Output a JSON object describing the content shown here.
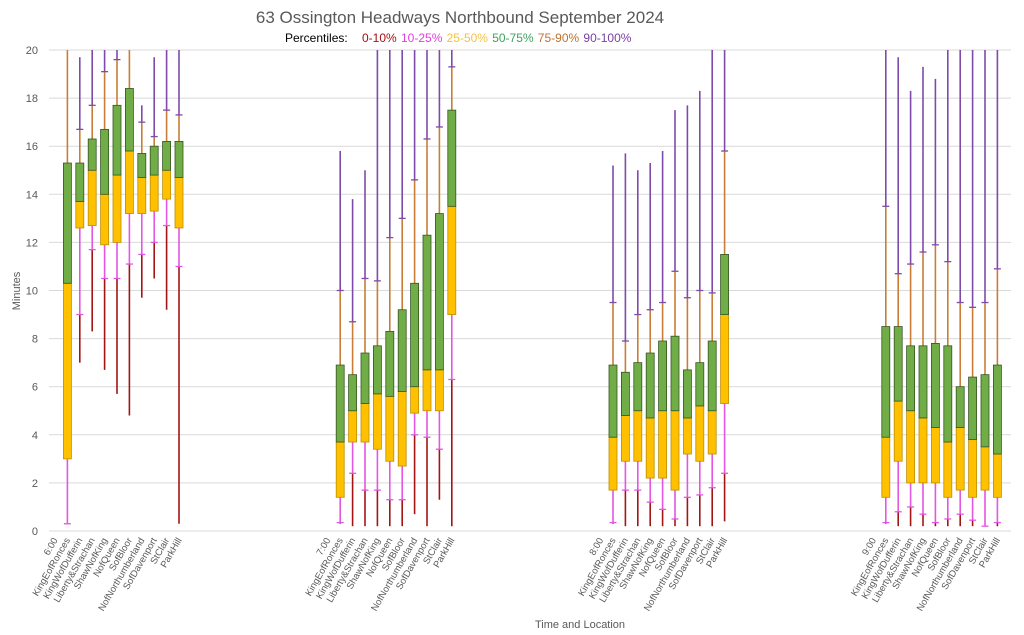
{
  "chart_data": {
    "type": "box-percentile",
    "title": "63 Ossington Headways Northbound September 2024",
    "legend": {
      "label": "Percentiles:",
      "placement": "top-center",
      "entries": [
        {
          "name": "0-10%",
          "color": "#A50F15"
        },
        {
          "name": "10-25%",
          "color": "#E040E0"
        },
        {
          "name": "25-50%",
          "color": "#F5C242"
        },
        {
          "name": "50-75%",
          "color": "#3DA35D"
        },
        {
          "name": "75-90%",
          "color": "#C0722A"
        },
        {
          "name": "90-100%",
          "color": "#7B3FA0"
        }
      ]
    },
    "series_colors": {
      "p0_p10": "#A31515",
      "p10_p25": "#E356E3",
      "p25_p50": "#FFC000",
      "p50_p75": "#70AD47",
      "p75_p90": "#C97D36",
      "p90_p100": "#7E4BAA",
      "box_border_green": "#375623",
      "box_border_yellow": "#BF8F00"
    },
    "xlabel": "Time and Location",
    "ylabel": "Minutes",
    "ylim": [
      0,
      20
    ],
    "yticks": [
      0,
      2,
      4,
      6,
      8,
      10,
      12,
      14,
      16,
      18,
      20
    ],
    "grid": true,
    "categories_per_hour": 22,
    "stops": [
      "KingEofRonces",
      "KingWofDufferin",
      "Liberty&Strachan",
      "ShawNofKing",
      "NofQueen",
      "SofBloor",
      "NofNorthumberland",
      "SofDavenport",
      "StClair",
      "ParkHill"
    ],
    "percentile_keys": [
      "p0",
      "p10",
      "p25",
      "p50",
      "p75",
      "p90",
      "p100"
    ],
    "groups": [
      {
        "time": "6:00",
        "values": [
          [
            0.3,
            0.3,
            3.0,
            10.3,
            15.3,
            20,
            20
          ],
          [
            7.0,
            9.0,
            12.6,
            13.7,
            15.3,
            16.7,
            19.7
          ],
          [
            8.3,
            11.7,
            12.7,
            15.0,
            16.3,
            17.7,
            20
          ],
          [
            6.7,
            10.5,
            11.9,
            14.0,
            16.7,
            19.1,
            20
          ],
          [
            5.7,
            10.5,
            12.0,
            14.8,
            17.7,
            19.6,
            20
          ],
          [
            4.8,
            11.1,
            13.2,
            15.8,
            18.4,
            20,
            20
          ],
          [
            9.7,
            11.5,
            13.2,
            14.7,
            15.7,
            17.0,
            17.7
          ],
          [
            10.5,
            12.0,
            13.3,
            14.8,
            16.0,
            16.4,
            19.7
          ],
          [
            9.2,
            12.7,
            13.8,
            15.0,
            16.2,
            17.5,
            20
          ],
          [
            0.3,
            11.0,
            12.6,
            14.7,
            16.2,
            17.3,
            20
          ]
        ]
      },
      {
        "time": "7:00",
        "values": [
          [
            0.3,
            0.35,
            1.4,
            3.7,
            6.9,
            10.0,
            15.8
          ],
          [
            0.2,
            2.4,
            3.7,
            5.0,
            6.5,
            8.7,
            13.8
          ],
          [
            0.2,
            1.7,
            3.7,
            5.3,
            7.4,
            10.5,
            15.0
          ],
          [
            0.2,
            1.7,
            3.4,
            5.7,
            7.7,
            10.4,
            20
          ],
          [
            0.2,
            1.3,
            2.9,
            5.6,
            8.3,
            12.2,
            20
          ],
          [
            0.2,
            1.3,
            2.7,
            5.8,
            9.2,
            13.0,
            20
          ],
          [
            0.7,
            4.0,
            4.9,
            6.0,
            10.3,
            14.6,
            20
          ],
          [
            0.2,
            3.9,
            5.0,
            6.7,
            12.3,
            16.3,
            20
          ],
          [
            1.3,
            3.4,
            5.0,
            6.7,
            13.2,
            16.8,
            20
          ],
          [
            0.2,
            6.3,
            9.0,
            13.5,
            17.5,
            19.3,
            20
          ]
        ]
      },
      {
        "time": "8:00",
        "values": [
          [
            0.3,
            0.35,
            1.7,
            3.9,
            6.9,
            9.5,
            15.2
          ],
          [
            0.2,
            1.7,
            2.9,
            4.8,
            6.6,
            7.9,
            15.7
          ],
          [
            0.2,
            1.7,
            2.9,
            5.0,
            7.0,
            9.0,
            15.0
          ],
          [
            0.2,
            1.2,
            2.2,
            4.7,
            7.4,
            9.2,
            15.3
          ],
          [
            0.2,
            0.9,
            2.2,
            5.0,
            7.9,
            9.5,
            15.8
          ],
          [
            0.2,
            0.5,
            1.7,
            5.0,
            8.1,
            10.8,
            17.5
          ],
          [
            0.2,
            1.4,
            3.2,
            4.7,
            6.7,
            9.7,
            17.7
          ],
          [
            0.2,
            1.5,
            2.9,
            5.2,
            7.0,
            10.0,
            18.3
          ],
          [
            0.2,
            1.8,
            3.2,
            5.0,
            7.9,
            9.9,
            20
          ],
          [
            0.4,
            2.4,
            5.3,
            9.0,
            11.5,
            15.8,
            20
          ]
        ]
      },
      {
        "time": "9:00",
        "values": [
          [
            0.3,
            0.35,
            1.4,
            3.9,
            8.5,
            13.5,
            20
          ],
          [
            0.2,
            0.8,
            2.9,
            5.4,
            8.5,
            10.7,
            19.7
          ],
          [
            0.2,
            1.0,
            2.0,
            5.0,
            7.7,
            11.1,
            18.3
          ],
          [
            0.2,
            0.7,
            2.0,
            4.7,
            7.7,
            11.6,
            19.3
          ],
          [
            0.2,
            0.35,
            2.0,
            4.3,
            7.8,
            11.9,
            18.8
          ],
          [
            0.2,
            0.5,
            1.4,
            3.7,
            7.7,
            11.2,
            20
          ],
          [
            0.2,
            0.7,
            1.7,
            4.3,
            6.0,
            9.5,
            20
          ],
          [
            0.2,
            0.45,
            1.4,
            3.8,
            6.4,
            9.3,
            20
          ],
          [
            0.2,
            0.2,
            1.7,
            3.5,
            6.5,
            9.5,
            20
          ],
          [
            0.2,
            0.35,
            1.4,
            3.2,
            6.9,
            10.9,
            20
          ]
        ]
      }
    ]
  }
}
